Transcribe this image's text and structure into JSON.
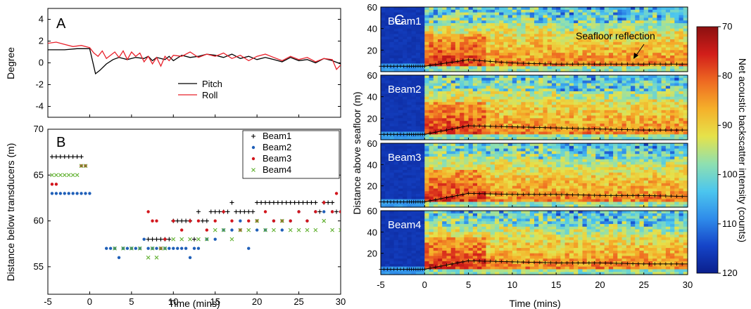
{
  "colorbar_colors": [
    "#0a1f8c",
    "#1544c8",
    "#2f8cea",
    "#4cc6ee",
    "#8fe0b0",
    "#e6e24a",
    "#f5b02a",
    "#ee6a22",
    "#d21e1a",
    "#8b1010"
  ],
  "chart_data": [
    {
      "panel": "A",
      "type": "line",
      "ylabel": "Degree",
      "xlabel": "",
      "xlim": [
        -5,
        30
      ],
      "ylim": [
        -5,
        5
      ],
      "xticks": [
        -5,
        0,
        5,
        10,
        15,
        20,
        25,
        30
      ],
      "yticks": [
        -4,
        -2,
        0,
        2,
        4
      ],
      "legend_placement": "bottom-center",
      "series": [
        {
          "name": "Pitch",
          "color": "#000000",
          "x": [
            -5,
            -3,
            -1.5,
            0,
            0.7,
            1.2,
            2,
            2.8,
            3.5,
            4.5,
            5.5,
            6.5,
            7,
            7.5,
            8,
            9,
            9.5,
            10,
            11,
            12,
            13,
            14,
            15,
            16,
            17,
            18,
            19,
            20,
            21,
            22,
            23,
            24,
            25,
            26,
            27,
            28,
            29,
            30
          ],
          "y": [
            1.2,
            1.2,
            1.3,
            1.3,
            -1.0,
            -0.7,
            -0.1,
            0.3,
            0.5,
            0.3,
            0.5,
            0.4,
            0.6,
            0.2,
            0.5,
            0.3,
            0.6,
            0.2,
            0.7,
            0.5,
            0.6,
            0.8,
            0.7,
            0.5,
            0.8,
            0.4,
            0.6,
            0.3,
            0.5,
            0.3,
            0.1,
            0.5,
            0.2,
            0.3,
            0.0,
            0.4,
            0.2,
            -0.1
          ]
        },
        {
          "name": "Roll",
          "color": "#e8202a",
          "x": [
            -5,
            -4,
            -3,
            -2,
            -1,
            0,
            0.5,
            1,
            1.5,
            2,
            3,
            3.5,
            4,
            4.5,
            5,
            5.5,
            6,
            6.5,
            7,
            7.5,
            8,
            8.5,
            9,
            9.5,
            10,
            11,
            12,
            13,
            14,
            15,
            16,
            17,
            18,
            19,
            20,
            21,
            22,
            23,
            24,
            25,
            26,
            27,
            28,
            29,
            29.5,
            30
          ],
          "y": [
            1.8,
            1.9,
            1.7,
            1.5,
            1.6,
            1.4,
            0.9,
            0.6,
            1.1,
            0.4,
            1.0,
            0.5,
            1.1,
            0.3,
            1.0,
            0.6,
            0.9,
            0.1,
            0.6,
            -0.1,
            0.5,
            -0.3,
            0.6,
            0.2,
            0.7,
            0.6,
            1.0,
            0.5,
            0.8,
            0.6,
            0.9,
            0.4,
            0.7,
            0.2,
            0.6,
            0.8,
            0.5,
            0.2,
            0.6,
            0.3,
            0.5,
            0.1,
            0.4,
            0.3,
            -0.6,
            -0.2
          ]
        }
      ]
    },
    {
      "panel": "B",
      "type": "scatter",
      "xlabel": "Time (mins)",
      "ylabel": "Distance below transducers (m)",
      "xlim": [
        -5,
        30
      ],
      "ylim": [
        52,
        70
      ],
      "xticks": [
        -5,
        0,
        5,
        10,
        15,
        20,
        25,
        30
      ],
      "yticks": [
        55,
        60,
        65,
        70
      ],
      "legend_placement": "top-right",
      "series": [
        {
          "name": "Beam1",
          "marker": "+",
          "color": "#000000",
          "x": [
            -4.5,
            -4,
            -3.5,
            -3,
            -2.5,
            -2,
            -1.5,
            -1,
            7,
            7.5,
            8,
            8.5,
            9,
            9.5,
            10,
            10.5,
            11,
            11.5,
            12,
            12.5,
            13,
            13.5,
            14,
            14.5,
            15,
            15.5,
            16,
            16.5,
            17,
            17.5,
            18,
            18.5,
            19,
            19.5,
            20,
            20.5,
            21,
            21.5,
            22,
            22.5,
            23,
            23.5,
            24,
            24.5,
            25,
            25.5,
            26,
            26.5,
            27,
            27.5,
            28,
            28.5,
            29,
            29.5
          ],
          "y": [
            67,
            67,
            67,
            67,
            67,
            67,
            67,
            67,
            58,
            58,
            58,
            58,
            58,
            58,
            60,
            60,
            60,
            60,
            60,
            58,
            61,
            60,
            60,
            61,
            61,
            61,
            61,
            61,
            62,
            61,
            61,
            61,
            61,
            61,
            62,
            62,
            62,
            62,
            62,
            62,
            62,
            62,
            62,
            62,
            62,
            62,
            62,
            62,
            62,
            61,
            62,
            62,
            62,
            61
          ]
        },
        {
          "name": "Beam2",
          "marker": "•",
          "color": "#1f5fb8",
          "x": [
            -4.5,
            -4,
            -3.5,
            -3,
            -2.5,
            -2,
            -1.5,
            -1,
            -0.5,
            0,
            2,
            2.5,
            3,
            3.5,
            4,
            4.5,
            5,
            5.5,
            6,
            6.5,
            7,
            7.5,
            8,
            8.5,
            9,
            9.5,
            10,
            10.5,
            11,
            11.5,
            12,
            12.5,
            13,
            14,
            15,
            16,
            17,
            18,
            19,
            20,
            21,
            22,
            23,
            24,
            25,
            26,
            27,
            28,
            29,
            30
          ],
          "y": [
            63,
            63,
            63,
            63,
            63,
            63,
            63,
            63,
            63,
            63,
            57,
            57,
            57,
            56,
            57,
            57,
            57,
            57,
            57,
            58,
            57,
            57,
            57,
            57,
            57,
            57,
            57,
            57,
            57,
            57,
            56,
            57,
            57,
            58,
            58,
            59,
            59,
            60,
            57,
            59,
            59,
            60,
            59,
            60,
            61,
            60,
            61,
            61,
            61,
            61
          ]
        },
        {
          "name": "Beam3",
          "marker": "•",
          "color": "#d2151c",
          "x": [
            -4.5,
            -4,
            -1,
            -0.5,
            7,
            7.5,
            8,
            8.5,
            9,
            10,
            11,
            12,
            13,
            14,
            15,
            16,
            17,
            18,
            19,
            20,
            21,
            22,
            23,
            24,
            25,
            26,
            27,
            28,
            29,
            29.5,
            30
          ],
          "y": [
            64,
            64,
            66,
            66,
            61,
            60,
            60,
            57,
            58,
            60,
            59,
            60,
            60,
            59,
            60,
            61,
            60,
            59,
            60,
            60,
            61,
            60,
            60,
            60,
            61,
            60,
            61,
            62,
            61,
            63,
            61
          ]
        },
        {
          "name": "Beam4",
          "marker": "x",
          "color": "#5fb02e",
          "x": [
            -4.5,
            -4,
            -3.5,
            -3,
            -2.5,
            -2,
            -1.5,
            -1,
            -0.5,
            3,
            4,
            5,
            6,
            7,
            7.5,
            8,
            8.5,
            9,
            10,
            11,
            12,
            13,
            14,
            15,
            16,
            17,
            18,
            19,
            20,
            21,
            22,
            23,
            24,
            25,
            26,
            27,
            28,
            29,
            30
          ],
          "y": [
            65,
            65,
            65,
            65,
            65,
            65,
            65,
            66,
            66,
            57,
            57,
            57,
            57,
            56,
            57,
            56,
            57,
            57,
            58,
            58,
            58,
            58,
            58,
            59,
            59,
            58,
            59,
            59,
            60,
            59,
            59,
            60,
            59,
            59,
            59,
            59,
            60,
            59,
            59
          ]
        }
      ]
    },
    {
      "panel": "C",
      "type": "heatmap",
      "xlabel": "Time (mins)",
      "ylabel": "Distance above seafloor (m)",
      "xlim": [
        -5,
        30
      ],
      "ylim": [
        0,
        60
      ],
      "xticks": [
        -5,
        0,
        5,
        10,
        15,
        20,
        25,
        30
      ],
      "yticks": [
        20,
        40,
        60
      ],
      "colorbar": {
        "label": "Net acoustic backscatter intensity  (counts)",
        "range": [
          70,
          120
        ],
        "ticks": [
          70,
          80,
          90,
          100,
          110,
          120
        ]
      },
      "annotation": "Seafloor reflection",
      "beams": [
        {
          "name": "Beam1",
          "seafloor_x": [
            -5,
            -2,
            0,
            5,
            10,
            15,
            20,
            25,
            30
          ],
          "seafloor_y": [
            5,
            5,
            5,
            11,
            8,
            7,
            7,
            7,
            7
          ]
        },
        {
          "name": "Beam2",
          "seafloor_x": [
            -5,
            -2,
            0,
            5,
            10,
            15,
            20,
            25,
            30
          ],
          "seafloor_y": [
            5,
            5,
            5,
            13,
            12,
            11,
            10,
            9,
            9
          ]
        },
        {
          "name": "Beam3",
          "seafloor_x": [
            -5,
            -2,
            0,
            5,
            10,
            15,
            20,
            25,
            30
          ],
          "seafloor_y": [
            5,
            5,
            5,
            13,
            12,
            12,
            11,
            11,
            10
          ]
        },
        {
          "name": "Beam4",
          "seafloor_x": [
            -5,
            -2,
            0,
            5,
            10,
            15,
            20,
            25,
            30
          ],
          "seafloor_y": [
            5,
            5,
            5,
            13,
            12,
            11,
            11,
            10,
            10
          ]
        }
      ]
    }
  ],
  "panels": {
    "A": {
      "label": "A"
    },
    "B": {
      "label": "B"
    },
    "C": {
      "label": "C"
    }
  }
}
